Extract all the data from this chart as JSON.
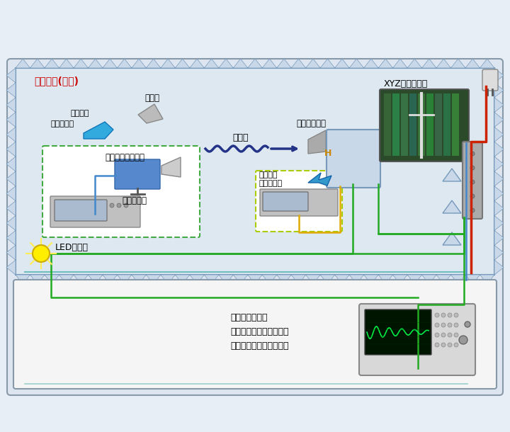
{
  "bg_color": "#e8eef5",
  "chamber_bg": "#dde8f0",
  "title_text": "電波暗室(暗箱)",
  "title_color": "#cc0000",
  "labels": {
    "xyz_scanner": "XYZスキャナー",
    "millimeter_receiver": "ミリ波受信機",
    "millimeter_wave": "ミリ波",
    "built_in_signal": "内蔵可能\n信号発生器",
    "millimeter_signal": "ミリ波信号発生器",
    "signal_gen": "信号発生器",
    "replaceable": "置換可能",
    "option": "オプション",
    "dut": "供試体",
    "led_light": "LEDライト",
    "analyzer": "オシロスコープ\nスペクトルムアナライザ\nシグナルアナライザなど"
  },
  "colors": {
    "green_line": "#22aa22",
    "blue_line": "#4488cc",
    "yellow_line": "#ddaa00",
    "dark_blue_line": "#223388",
    "red_line": "#cc2200",
    "teal_line": "#44aaaa",
    "chamber_border": "#7799bb",
    "spike_color": "#c8d8e8",
    "device_blue": "#5588cc",
    "device_gray": "#aaaaaa"
  }
}
